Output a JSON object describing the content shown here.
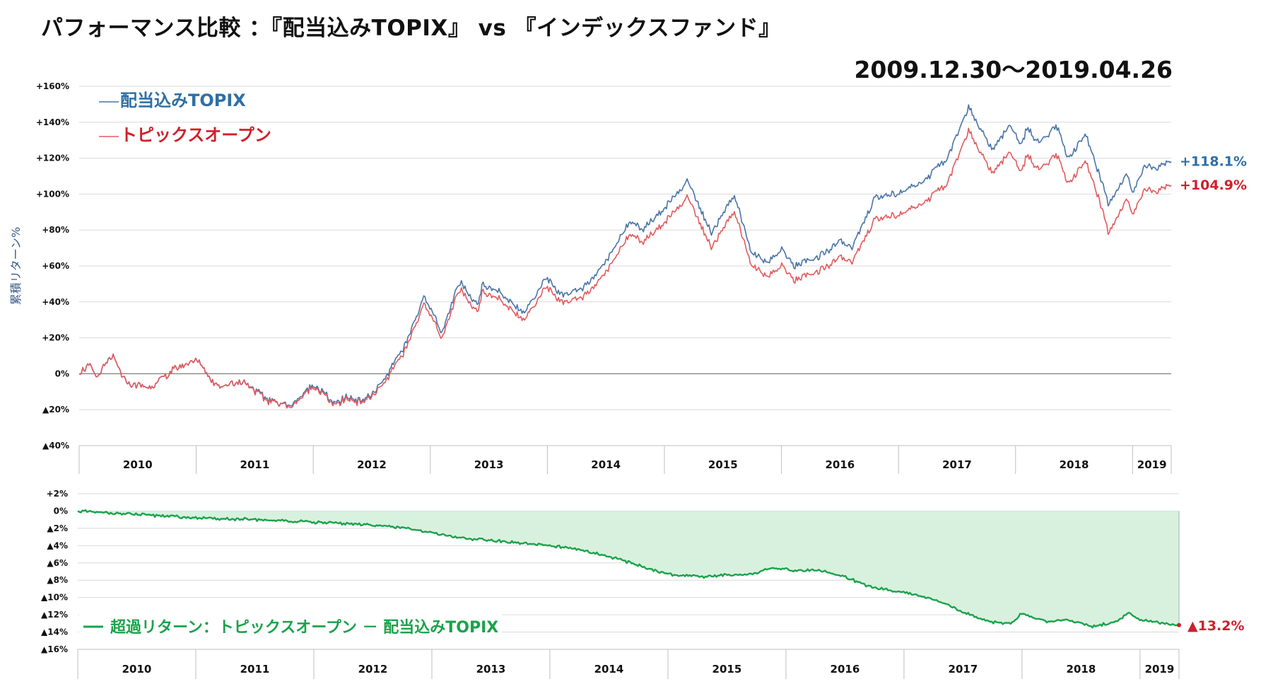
{
  "page": {
    "title": "パフォーマンス比較 ：『配当込みTOPIX』 vs 『インデックスファンド』",
    "period": "2009.12.30〜2019.04.26"
  },
  "colors": {
    "topix": "#4a74a8",
    "fund": "#e35a5e",
    "excess": "#1aa34a",
    "excess_fill": "#d8f1df",
    "topix_label": "#2f6fa6",
    "fund_label": "#d0202c",
    "neg_label": "#d0202c"
  },
  "chart_data": [
    {
      "type": "line",
      "ylabel": "累積リターン%",
      "ylim": [
        -40,
        160
      ],
      "yticks": [
        160,
        140,
        120,
        100,
        80,
        60,
        40,
        20,
        0,
        -20,
        -40
      ],
      "ytick_labels": [
        "+160%",
        "+140%",
        "+120%",
        "+100%",
        "+80%",
        "+60%",
        "+40%",
        "+20%",
        "0%",
        "▲20%",
        "▲40%"
      ],
      "xlim": [
        2010.0,
        2019.33
      ],
      "year_labels": [
        "2010",
        "2011",
        "2012",
        "2013",
        "2014",
        "2015",
        "2016",
        "2017",
        "2018",
        "2019"
      ],
      "grid": true,
      "legend_position": "top-left",
      "series": [
        {
          "name": "配当込みTOPIX",
          "end_label": "+118.1%",
          "x": [
            2010.0,
            2010.08,
            2010.15,
            2010.28,
            2010.4,
            2010.6,
            2010.8,
            2011.0,
            2011.14,
            2011.2,
            2011.4,
            2011.6,
            2011.72,
            2011.8,
            2012.0,
            2012.2,
            2012.28,
            2012.4,
            2012.5,
            2012.6,
            2012.8,
            2012.95,
            2013.1,
            2013.25,
            2013.4,
            2013.45,
            2013.6,
            2013.8,
            2014.0,
            2014.1,
            2014.3,
            2014.5,
            2014.7,
            2014.8,
            2015.0,
            2015.2,
            2015.4,
            2015.6,
            2015.75,
            2015.9,
            2016.0,
            2016.1,
            2016.3,
            2016.5,
            2016.6,
            2016.8,
            2016.95,
            2017.0,
            2017.2,
            2017.4,
            2017.6,
            2017.8,
            2017.95,
            2018.05,
            2018.1,
            2018.2,
            2018.35,
            2018.45,
            2018.6,
            2018.7,
            2018.8,
            2018.95,
            2019.0,
            2019.1,
            2019.2,
            2019.33
          ],
          "y": [
            0,
            5,
            -2,
            10,
            -5,
            -8,
            2,
            8,
            -4,
            -7,
            -4,
            -14,
            -16,
            -18,
            -6,
            -17,
            -13,
            -15,
            -12,
            -4,
            18,
            44,
            22,
            52,
            38,
            50,
            45,
            34,
            54,
            44,
            47,
            62,
            85,
            80,
            92,
            108,
            78,
            100,
            66,
            62,
            70,
            60,
            64,
            74,
            70,
            98,
            100,
            100,
            107,
            118,
            148,
            125,
            138,
            128,
            137,
            128,
            138,
            120,
            133,
            114,
            94,
            112,
            100,
            116,
            114,
            118.1
          ]
        },
        {
          "name": "トピックスオープン",
          "end_label": "+104.9%",
          "x": [
            2010.0,
            2010.08,
            2010.15,
            2010.28,
            2010.4,
            2010.6,
            2010.8,
            2011.0,
            2011.14,
            2011.2,
            2011.4,
            2011.6,
            2011.72,
            2011.8,
            2012.0,
            2012.2,
            2012.28,
            2012.4,
            2012.5,
            2012.6,
            2012.8,
            2012.95,
            2013.1,
            2013.25,
            2013.4,
            2013.45,
            2013.6,
            2013.8,
            2014.0,
            2014.1,
            2014.3,
            2014.5,
            2014.7,
            2014.8,
            2015.0,
            2015.2,
            2015.4,
            2015.6,
            2015.75,
            2015.9,
            2016.0,
            2016.1,
            2016.3,
            2016.5,
            2016.6,
            2016.8,
            2016.95,
            2017.0,
            2017.2,
            2017.4,
            2017.6,
            2017.8,
            2017.95,
            2018.05,
            2018.1,
            2018.2,
            2018.35,
            2018.45,
            2018.6,
            2018.7,
            2018.8,
            2018.95,
            2019.0,
            2019.1,
            2019.2,
            2019.33
          ],
          "y": [
            0,
            5,
            -2,
            10,
            -5,
            -8,
            2,
            8,
            -4,
            -7,
            -4,
            -15,
            -16,
            -19,
            -7,
            -18,
            -14,
            -16,
            -13,
            -6,
            15,
            40,
            19,
            48,
            34,
            46,
            41,
            30,
            49,
            40,
            42,
            56,
            78,
            73,
            84,
            99,
            70,
            91,
            59,
            54,
            61,
            52,
            56,
            65,
            62,
            86,
            88,
            88,
            95,
            104,
            135,
            112,
            123,
            113,
            122,
            113,
            122,
            106,
            118,
            100,
            78,
            98,
            88,
            103,
            101,
            104.9
          ]
        }
      ]
    },
    {
      "type": "area",
      "legend": "超過リターン：トピックスオープン － 配当込みTOPIX",
      "end_label": "▲13.2%",
      "ylim": [
        -16,
        2
      ],
      "yticks": [
        2,
        0,
        -2,
        -4,
        -6,
        -8,
        -10,
        -12,
        -14,
        -16
      ],
      "ytick_labels": [
        "+2%",
        "0%",
        "▲2%",
        "▲4%",
        "▲6%",
        "▲8%",
        "▲10%",
        "▲12%",
        "▲14%",
        "▲16%"
      ],
      "xlim": [
        2010.0,
        2019.33
      ],
      "year_labels": [
        "2010",
        "2011",
        "2012",
        "2013",
        "2014",
        "2015",
        "2016",
        "2017",
        "2018",
        "2019"
      ],
      "grid": true,
      "legend_position": "bottom-left",
      "series": [
        {
          "name": "超過リターン：トピックスオープン － 配当込みTOPIX",
          "x": [
            2010.0,
            2010.5,
            2011.0,
            2011.5,
            2012.0,
            2012.5,
            2012.8,
            2013.0,
            2013.3,
            2013.6,
            2013.8,
            2014.0,
            2014.3,
            2014.6,
            2014.8,
            2015.0,
            2015.3,
            2015.5,
            2015.7,
            2015.9,
            2016.1,
            2016.3,
            2016.5,
            2016.7,
            2016.9,
            2017.0,
            2017.3,
            2017.5,
            2017.7,
            2017.9,
            2018.0,
            2018.2,
            2018.4,
            2018.6,
            2018.8,
            2018.9,
            2019.0,
            2019.2,
            2019.33
          ],
          "y": [
            0,
            -0.4,
            -0.8,
            -1.0,
            -1.3,
            -1.6,
            -2.0,
            -2.6,
            -3.2,
            -3.5,
            -3.8,
            -4.0,
            -4.6,
            -5.6,
            -6.5,
            -7.3,
            -7.6,
            -7.4,
            -7.3,
            -6.6,
            -6.9,
            -6.9,
            -7.6,
            -8.7,
            -9.2,
            -9.4,
            -10.4,
            -11.7,
            -12.7,
            -13.1,
            -11.8,
            -12.8,
            -12.6,
            -13.4,
            -12.8,
            -11.7,
            -12.6,
            -13.0,
            -13.2
          ]
        }
      ]
    }
  ]
}
